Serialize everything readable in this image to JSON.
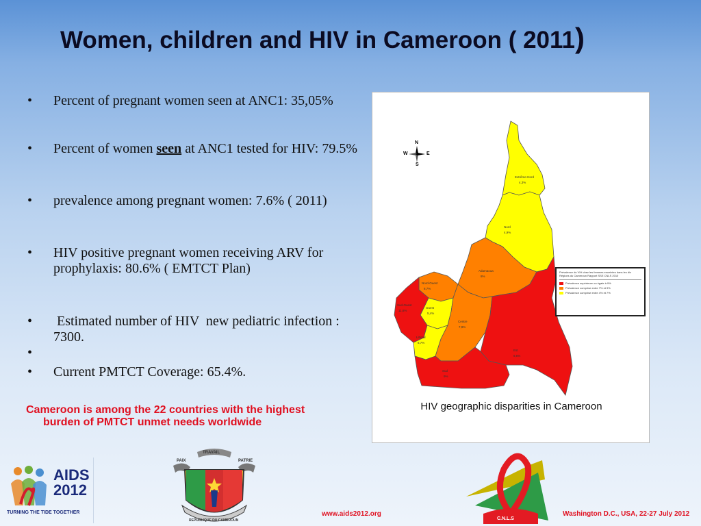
{
  "slide": {
    "title": "Women, children and HIV in Cameroon ( 2011",
    "title_paren": ")",
    "bullets": [
      "Percent of pregnant women seen at ANC1: 35,05%",
      {
        "before": "Percent of women ",
        "emphasis": "seen",
        "after": " at ANC1 tested for HIV: 79.5%"
      },
      "prevalence among pregnant women: 7.6% ( 2011)",
      "HIV positive pregnant women receiving ARV for prophylaxis: 80.6% ( EMTCT Plan)",
      " Estimated number of HIV  new pediatric infection : 7300.",
      "",
      "Current PMTCT Coverage: 65.4%."
    ],
    "bullet_symbol": "•",
    "note_line1": "Cameroon is among the 22 countries with the highest",
    "note_line2": "burden of PMTCT unmet needs worldwide"
  },
  "map": {
    "caption": "HIV geographic disparities in Cameroon",
    "compass": {
      "n": "N",
      "s": "S",
      "e": "E",
      "w": "W"
    },
    "regions": [
      {
        "name": "Extrême-Nord",
        "value": "4,3%",
        "color": "#ffff00"
      },
      {
        "name": "Nord",
        "value": "4,9%",
        "color": "#ffff00"
      },
      {
        "name": "Adamaoua",
        "value": "8%",
        "color": "#ff8000"
      },
      {
        "name": "Nord-Ouest",
        "value": "8,7%",
        "color": "#ff8000"
      },
      {
        "name": "Ouest",
        "value": "5,4%",
        "color": "#ffff00"
      },
      {
        "name": "Sud-Ouest",
        "value": "11,6%",
        "color": "#ee1111"
      },
      {
        "name": "Littoral",
        "value": "6,7%",
        "color": "#ffff00"
      },
      {
        "name": "Centre",
        "value": "7,9%",
        "color": "#ff8000"
      },
      {
        "name": "Est",
        "value": "9,5%",
        "color": "#ee1111"
      },
      {
        "name": "Sud",
        "value": "9%",
        "color": "#ee1111"
      }
    ],
    "legend": {
      "title": "Prévalence du VIH chez les femmes enceintes dans les dix Régions du Cameroun Rapport SSE CNLS 2010",
      "items": [
        {
          "label": "Prévalence supérieure ou égale à 9%",
          "color": "#ee1111"
        },
        {
          "label": "Prévalence comprise entre 7% et 9%",
          "color": "#ff8000"
        },
        {
          "label": "Prévalence comprise entre 4% et 7%",
          "color": "#ffff00"
        }
      ]
    }
  },
  "footer": {
    "url": "www.aids2012.org",
    "place": "Washington D.C., USA, 22-27 July 2012",
    "aids_logo": {
      "line1": "AIDS",
      "line2": "2012",
      "tagline": "TURNING THE TIDE TOGETHER"
    },
    "emblem_words": {
      "left": "PAIX",
      "top": "TRAVAIL",
      "right": "PATRIE",
      "bottom": "REPUBLIQUE DU CAMEROUN"
    },
    "cnls_text": "C.N.L.S"
  }
}
